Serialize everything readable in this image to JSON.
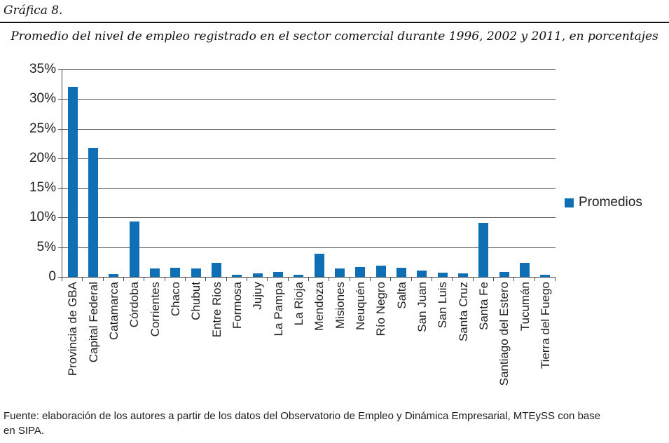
{
  "figure": {
    "label": "Gráfica 8.",
    "title": "Promedio del nivel de empleo registrado en el sector comercial durante 1996, 2002 y 2011, en porcentajes"
  },
  "chart_data": {
    "type": "bar",
    "title": "Promedio del nivel de empleo registrado en el sector comercial durante 1996, 2002 y 2011, en porcentajes",
    "categories": [
      "Provincia de GBA",
      "Capital Federal",
      "Catamarca",
      "Córdoba",
      "Corrientes",
      "Chaco",
      "Chubut",
      "Entre Rios",
      "Formosa",
      "Jujuy",
      "La Pampa",
      "La Rioja",
      "Mendoza",
      "Misiones",
      "Neuquén",
      "Río Negro",
      "Salta",
      "San Juan",
      "San Luis",
      "Santa Cruz",
      "Santa Fe",
      "Santiago del Estero",
      "Tucumán",
      "Tierra del Fuego"
    ],
    "series": [
      {
        "name": "Promedios",
        "values": [
          32.1,
          21.8,
          0.5,
          9.4,
          1.4,
          1.5,
          1.4,
          2.4,
          0.4,
          0.6,
          0.8,
          0.4,
          3.9,
          1.4,
          1.6,
          1.9,
          1.5,
          1.1,
          0.7,
          0.6,
          9.1,
          0.8,
          2.4,
          0.4
        ]
      }
    ],
    "xlabel": "",
    "ylabel": "",
    "ylim": [
      0,
      35
    ],
    "ytick_labels": [
      "35%",
      "30%",
      "25%",
      "20%",
      "15%",
      "10%",
      "5%",
      "0"
    ],
    "ytick_values": [
      35,
      30,
      25,
      20,
      15,
      10,
      5,
      0
    ],
    "grid": "horizontal",
    "legend_position": "right",
    "bar_color": "#0F6FB5"
  },
  "footer": {
    "source_line1": "Fuente: elaboración de los autores a partir de los datos del Observatorio de Empleo y Dinámica Empresarial, MTEySS con base",
    "source_line2": "en SIPA."
  }
}
